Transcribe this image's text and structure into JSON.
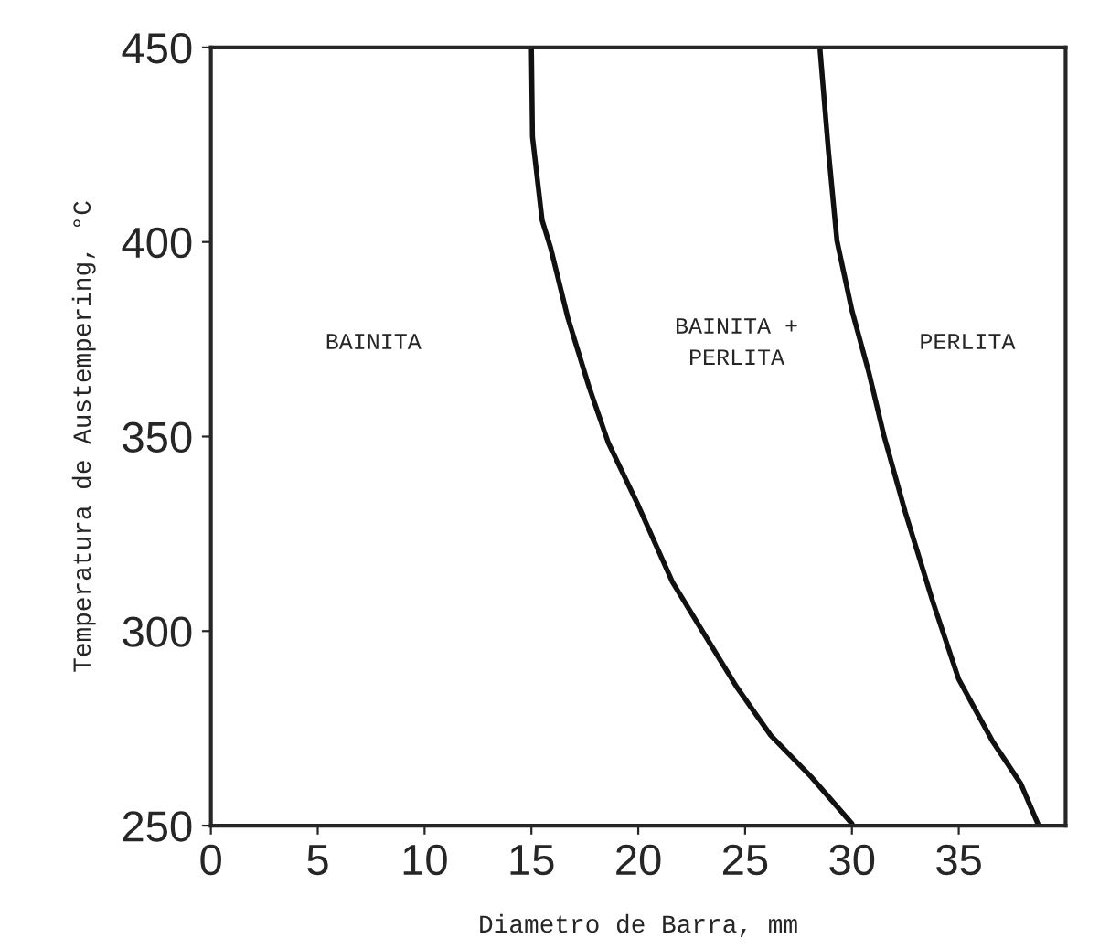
{
  "chart_data": {
    "type": "line",
    "xlabel": "Diametro de Barra, mm",
    "ylabel": "Temperatura de Austempering, °C",
    "xlim": [
      0,
      40
    ],
    "ylim": [
      250,
      450
    ],
    "xticks": [
      0,
      5,
      10,
      15,
      20,
      25,
      30,
      35
    ],
    "yticks": [
      250,
      300,
      350,
      400,
      450
    ],
    "grid": false,
    "marker": "none",
    "line_style": "solid",
    "series": [
      {
        "color": "#111111",
        "x": [
          15.0,
          15.05,
          15.5,
          15.9,
          16.7,
          17.7,
          18.6,
          20.0,
          21.6,
          23.0,
          24.6,
          26.2,
          28.1,
          30.0
        ],
        "values": [
          450,
          427,
          405.6,
          398.5,
          380.6,
          362.7,
          348.4,
          332.3,
          312.6,
          300,
          285.7,
          273.2,
          262.5,
          250.5
        ]
      },
      {
        "color": "#111111",
        "x": [
          28.5,
          28.9,
          29.3,
          30.0,
          30.8,
          31.5,
          32.5,
          33.8,
          35.0,
          36.6,
          37.9,
          38.7
        ],
        "values": [
          450,
          423.5,
          400.3,
          382.4,
          366.3,
          350.2,
          330.5,
          307.3,
          287.6,
          271.5,
          260.8,
          250.5
        ]
      }
    ],
    "annotations": [
      "BAINITA",
      "BAINITA +\nPERLITA",
      "PERLITA"
    ]
  }
}
